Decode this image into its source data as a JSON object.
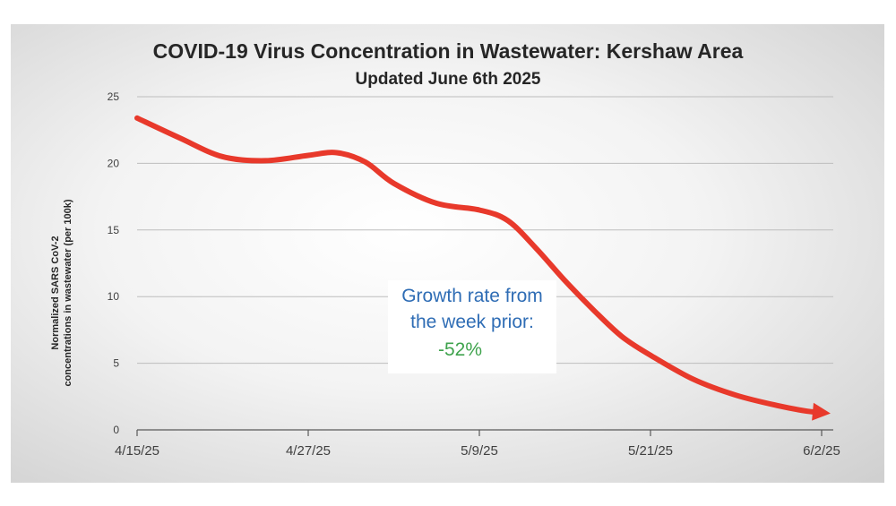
{
  "chart_data": {
    "type": "line",
    "title": "COVID-19 Virus Concentration in Wastewater: Kershaw Area",
    "subtitle": "Updated June 6th 2025",
    "xlabel": "",
    "ylabel_lines": [
      "Normalized SARS CoV-2",
      "concentrations in wastewater (per 100k)"
    ],
    "x_ticks": [
      "4/15/25",
      "4/27/25",
      "5/9/25",
      "5/21/25",
      "6/2/25"
    ],
    "y_ticks": [
      "0",
      "5",
      "10",
      "15",
      "20",
      "25"
    ],
    "ylim": [
      0,
      25
    ],
    "xlim": [
      "2025-04-15",
      "2025-06-02"
    ],
    "grid": "horizontal",
    "line_color": "#e8392b",
    "series": [
      {
        "x": [
          "2025-04-15",
          "2025-04-18",
          "2025-04-21",
          "2025-04-24",
          "2025-04-27",
          "2025-04-29",
          "2025-05-01",
          "2025-05-03",
          "2025-05-06",
          "2025-05-09",
          "2025-05-11",
          "2025-05-13",
          "2025-05-15",
          "2025-05-17",
          "2025-05-19",
          "2025-05-21",
          "2025-05-24",
          "2025-05-27",
          "2025-05-30",
          "2025-06-01",
          "2025-06-02"
        ],
        "y": [
          23.4,
          21.9,
          20.5,
          20.2,
          20.6,
          20.8,
          20.1,
          18.5,
          17.0,
          16.5,
          15.7,
          13.6,
          11.2,
          9.0,
          7.0,
          5.6,
          3.8,
          2.6,
          1.8,
          1.4,
          1.3
        ]
      }
    ],
    "annotation": {
      "text_lines": [
        "Growth rate from",
        "the week prior:"
      ],
      "value": "-52%",
      "text_color": "#2f6db5",
      "value_color": "#3fa34d"
    }
  }
}
